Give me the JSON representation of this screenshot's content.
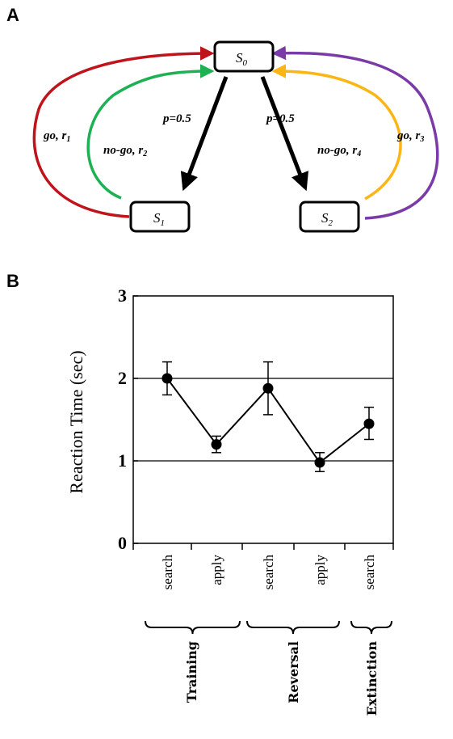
{
  "panel_a": {
    "letter": "A",
    "states": [
      {
        "id": "s0",
        "base": "S",
        "sub": "0"
      },
      {
        "id": "s1",
        "base": "S",
        "sub": "1"
      },
      {
        "id": "s2",
        "base": "S",
        "sub": "2"
      }
    ],
    "transitions": [
      {
        "id": "s0-s1",
        "label": "p=0.5"
      },
      {
        "id": "s0-s2",
        "label": "p=0.5"
      }
    ],
    "edges": [
      {
        "id": "s1-go",
        "text": "go, r",
        "sub": "1",
        "color": "#c0141c"
      },
      {
        "id": "s1-nogo",
        "text": "no-go, r",
        "sub": "2",
        "color": "#1db154"
      },
      {
        "id": "s2-nogo",
        "text": "no-go, r",
        "sub": "4",
        "color": "#fbb616"
      },
      {
        "id": "s2-go",
        "text": "go, r",
        "sub": "3",
        "color": "#7a3aa8"
      }
    ]
  },
  "panel_b": {
    "letter": "B",
    "chart_data": {
      "type": "line",
      "ylabel": "Reaction Time (sec)",
      "ylim": [
        0,
        3
      ],
      "yticks": [
        "0",
        "1",
        "2",
        "3"
      ],
      "grid": "horizontal at 1 and 2",
      "categories": [
        "search",
        "apply",
        "search",
        "apply",
        "search"
      ],
      "values": [
        2.0,
        1.2,
        1.88,
        0.98,
        1.45
      ],
      "err_upper": [
        2.2,
        1.3,
        2.2,
        1.1,
        1.65
      ],
      "err_lower": [
        1.8,
        1.1,
        1.56,
        0.87,
        1.26
      ],
      "groups": [
        {
          "label": "Training",
          "span": [
            0,
            1
          ]
        },
        {
          "label": "Reversal",
          "span": [
            2,
            3
          ]
        },
        {
          "label": "Extinction",
          "span": [
            4,
            4
          ]
        }
      ]
    }
  }
}
